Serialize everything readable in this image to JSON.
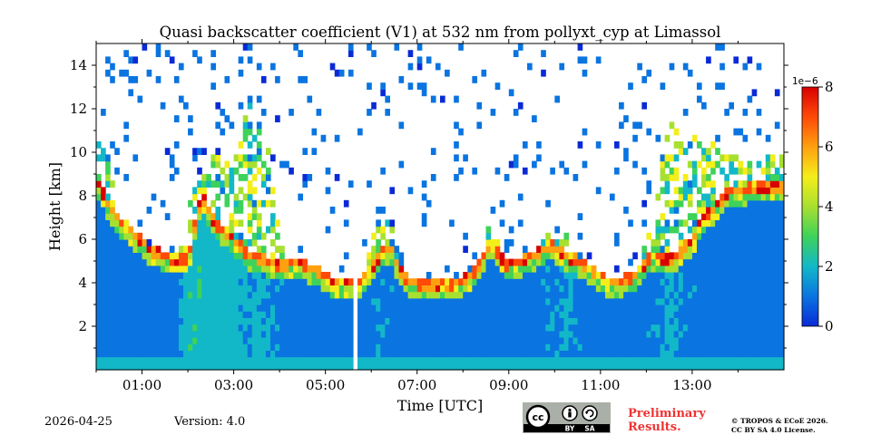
{
  "chart_data": {
    "type": "heatmap",
    "title": "Quasi backscatter coefficient (V1) at 532 nm from pollyxt_cyp at Limassol",
    "xlabel": "Time [UTC]",
    "ylabel": "Height [km]",
    "xlim": [
      0,
      15
    ],
    "ylim": [
      0,
      15
    ],
    "x_ticks": [
      1,
      3,
      5,
      7,
      9,
      11,
      13
    ],
    "x_tick_labels": [
      "01:00",
      "03:00",
      "05:00",
      "07:00",
      "09:00",
      "11:00",
      "13:00"
    ],
    "x_minor_ticks": [
      0,
      2,
      4,
      6,
      8,
      10,
      12,
      14
    ],
    "y_ticks": [
      2,
      4,
      6,
      8,
      10,
      12,
      14
    ],
    "y_tick_labels": [
      "2",
      "4",
      "6",
      "8",
      "10",
      "12",
      "14"
    ],
    "colorbar": {
      "min": 0,
      "max": 8,
      "ticks": [
        0,
        2,
        4,
        6,
        8
      ],
      "tick_labels": [
        "0",
        "2",
        "4",
        "6",
        "8"
      ],
      "scale_label": "1e−6",
      "colormap": [
        "#0a2ad6",
        "#0a74e0",
        "#12b8c8",
        "#3ed25a",
        "#a8e030",
        "#f4ee1a",
        "#ffa010",
        "#ff4a08",
        "#d80000"
      ]
    },
    "data_gap": [
      5.55,
      5.7
    ],
    "profile": [
      {
        "t": 0.0,
        "base": 8.5,
        "top": 10.5,
        "tone": 0.1
      },
      {
        "t": 0.3,
        "base": 7.2,
        "top": 10.0,
        "tone": 0.1
      },
      {
        "t": 0.6,
        "base": 6.4,
        "top": 5.2,
        "tone": 0.1
      },
      {
        "t": 0.9,
        "base": 5.9,
        "top": 5.9,
        "tone": 0.1
      },
      {
        "t": 1.2,
        "base": 5.2,
        "top": 5.2,
        "tone": 0.1
      },
      {
        "t": 1.7,
        "base": 4.9,
        "top": 4.9,
        "tone": 0.1
      },
      {
        "t": 2.0,
        "base": 4.9,
        "top": 7.5,
        "tone": 0.3
      },
      {
        "t": 2.3,
        "base": 7.8,
        "top": 9.2,
        "tone": 0.3
      },
      {
        "t": 2.6,
        "base": 6.5,
        "top": 10.0,
        "tone": 0.25
      },
      {
        "t": 3.0,
        "base": 5.8,
        "top": 9.5,
        "tone": 0.25
      },
      {
        "t": 3.3,
        "base": 5.1,
        "top": 12.5,
        "tone": 0.2
      },
      {
        "t": 3.7,
        "base": 4.8,
        "top": 11.0,
        "tone": 0.2
      },
      {
        "t": 4.0,
        "base": 4.5,
        "top": 6.0,
        "tone": 0.15
      },
      {
        "t": 4.4,
        "base": 4.8,
        "top": 4.8,
        "tone": 0.1
      },
      {
        "t": 4.8,
        "base": 4.3,
        "top": 4.3,
        "tone": 0.1
      },
      {
        "t": 5.2,
        "base": 3.8,
        "top": 3.8,
        "tone": 0.1
      },
      {
        "t": 5.5,
        "base": 3.8,
        "top": 3.8,
        "tone": 0.1
      },
      {
        "t": 5.8,
        "base": 3.9,
        "top": 3.9,
        "tone": 0.1
      },
      {
        "t": 6.1,
        "base": 4.8,
        "top": 7.0,
        "tone": 0.15
      },
      {
        "t": 6.4,
        "base": 5.5,
        "top": 7.0,
        "tone": 0.15
      },
      {
        "t": 6.7,
        "base": 4.0,
        "top": 4.0,
        "tone": 0.1
      },
      {
        "t": 7.2,
        "base": 3.6,
        "top": 3.6,
        "tone": 0.1
      },
      {
        "t": 7.8,
        "base": 3.7,
        "top": 3.7,
        "tone": 0.1
      },
      {
        "t": 8.3,
        "base": 4.3,
        "top": 4.3,
        "tone": 0.1
      },
      {
        "t": 8.6,
        "base": 5.8,
        "top": 7.2,
        "tone": 0.15
      },
      {
        "t": 8.9,
        "base": 4.6,
        "top": 4.6,
        "tone": 0.1
      },
      {
        "t": 9.3,
        "base": 4.8,
        "top": 4.8,
        "tone": 0.1
      },
      {
        "t": 9.9,
        "base": 5.5,
        "top": 6.5,
        "tone": 0.15
      },
      {
        "t": 10.3,
        "base": 5.0,
        "top": 6.2,
        "tone": 0.2
      },
      {
        "t": 10.7,
        "base": 4.5,
        "top": 4.5,
        "tone": 0.1
      },
      {
        "t": 11.2,
        "base": 3.8,
        "top": 3.8,
        "tone": 0.1
      },
      {
        "t": 11.7,
        "base": 4.0,
        "top": 4.0,
        "tone": 0.1
      },
      {
        "t": 12.1,
        "base": 5.0,
        "top": 6.5,
        "tone": 0.15
      },
      {
        "t": 12.5,
        "base": 4.8,
        "top": 11.5,
        "tone": 0.2
      },
      {
        "t": 12.9,
        "base": 5.5,
        "top": 11.0,
        "tone": 0.15
      },
      {
        "t": 13.3,
        "base": 6.8,
        "top": 10.5,
        "tone": 0.12
      },
      {
        "t": 13.8,
        "base": 8.0,
        "top": 10.0,
        "tone": 0.1
      },
      {
        "t": 14.5,
        "base": 8.2,
        "top": 10.0,
        "tone": 0.1
      },
      {
        "t": 15.0,
        "base": 8.2,
        "top": 10.0,
        "tone": 0.1
      }
    ]
  },
  "footer": {
    "date": "2026-04-25",
    "version": "Version: 4.0",
    "preliminary_line1": "Preliminary",
    "preliminary_line2": "Results.",
    "copyright_line1": "© TROPOS & ECoE 2026.",
    "copyright_line2": "CC BY SA 4.0 License.",
    "cc_badge": {
      "by": "BY",
      "sa": "SA",
      "bg": "#aab0a8"
    }
  }
}
